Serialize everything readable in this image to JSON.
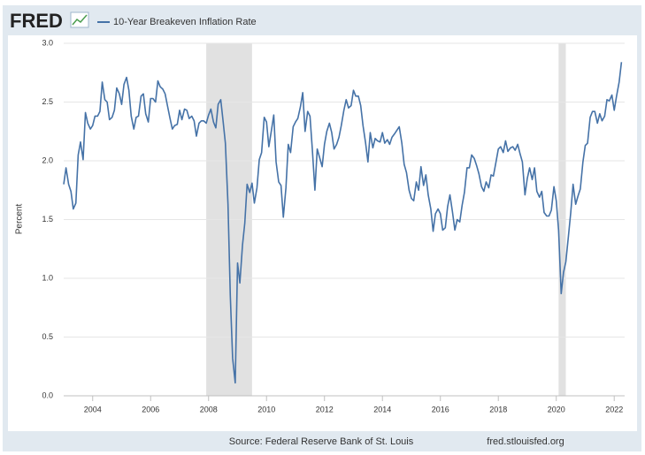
{
  "logo": "FRED",
  "source": "Source: Federal Reserve Bank of St. Louis",
  "site": "fred.stlouisfed.org",
  "chart_data": {
    "type": "line",
    "y_label": "Percent",
    "xlim": [
      2003.0,
      2022.36
    ],
    "xticks": [
      2004,
      2006,
      2008,
      2010,
      2012,
      2014,
      2016,
      2018,
      2020,
      2022
    ],
    "ylim": [
      0,
      3
    ],
    "yticks": [
      {
        "value": 0,
        "label": "0.0"
      },
      0.5,
      {
        "value": 1,
        "label": "1.0"
      },
      1.5,
      {
        "value": 2,
        "label": "2.0"
      },
      2.5,
      {
        "value": 3,
        "label": "3.0"
      }
    ],
    "grid": true,
    "shaded_periods": [
      [
        2007.92,
        2009.5
      ],
      [
        2020.08,
        2020.33
      ]
    ],
    "series": [
      {
        "name": "10-Year Breakeven Inflation Rate",
        "color": "#4572a7",
        "x": [
          2003.0,
          2003.08,
          2003.17,
          2003.25,
          2003.33,
          2003.42,
          2003.5,
          2003.58,
          2003.67,
          2003.75,
          2003.83,
          2003.92,
          2004.0,
          2004.08,
          2004.17,
          2004.25,
          2004.33,
          2004.42,
          2004.5,
          2004.58,
          2004.67,
          2004.75,
          2004.83,
          2004.92,
          2005.0,
          2005.08,
          2005.17,
          2005.25,
          2005.33,
          2005.42,
          2005.5,
          2005.58,
          2005.67,
          2005.75,
          2005.83,
          2005.92,
          2006.0,
          2006.08,
          2006.17,
          2006.25,
          2006.33,
          2006.42,
          2006.5,
          2006.58,
          2006.67,
          2006.75,
          2006.83,
          2006.92,
          2007.0,
          2007.08,
          2007.17,
          2007.25,
          2007.33,
          2007.42,
          2007.5,
          2007.58,
          2007.67,
          2007.75,
          2007.83,
          2007.92,
          2008.0,
          2008.08,
          2008.17,
          2008.25,
          2008.33,
          2008.42,
          2008.5,
          2008.58,
          2008.67,
          2008.75,
          2008.83,
          2008.92,
          2009.0,
          2009.08,
          2009.17,
          2009.25,
          2009.33,
          2009.42,
          2009.5,
          2009.58,
          2009.67,
          2009.75,
          2009.83,
          2009.92,
          2010.0,
          2010.08,
          2010.17,
          2010.25,
          2010.33,
          2010.42,
          2010.5,
          2010.58,
          2010.67,
          2010.75,
          2010.83,
          2010.92,
          2011.0,
          2011.08,
          2011.17,
          2011.25,
          2011.33,
          2011.42,
          2011.5,
          2011.58,
          2011.67,
          2011.75,
          2011.83,
          2011.92,
          2012.0,
          2012.08,
          2012.17,
          2012.25,
          2012.33,
          2012.42,
          2012.5,
          2012.58,
          2012.67,
          2012.75,
          2012.83,
          2012.92,
          2013.0,
          2013.08,
          2013.17,
          2013.25,
          2013.33,
          2013.42,
          2013.5,
          2013.58,
          2013.67,
          2013.75,
          2013.83,
          2013.92,
          2014.0,
          2014.08,
          2014.17,
          2014.25,
          2014.33,
          2014.42,
          2014.5,
          2014.58,
          2014.67,
          2014.75,
          2014.83,
          2014.92,
          2015.0,
          2015.08,
          2015.17,
          2015.25,
          2015.33,
          2015.42,
          2015.5,
          2015.58,
          2015.67,
          2015.75,
          2015.83,
          2015.92,
          2016.0,
          2016.08,
          2016.17,
          2016.25,
          2016.33,
          2016.42,
          2016.5,
          2016.58,
          2016.67,
          2016.75,
          2016.83,
          2016.92,
          2017.0,
          2017.08,
          2017.17,
          2017.25,
          2017.33,
          2017.42,
          2017.5,
          2017.58,
          2017.67,
          2017.75,
          2017.83,
          2017.92,
          2018.0,
          2018.08,
          2018.17,
          2018.25,
          2018.33,
          2018.42,
          2018.5,
          2018.58,
          2018.67,
          2018.75,
          2018.83,
          2018.92,
          2019.0,
          2019.08,
          2019.17,
          2019.25,
          2019.33,
          2019.42,
          2019.5,
          2019.58,
          2019.67,
          2019.75,
          2019.83,
          2019.92,
          2020.0,
          2020.08,
          2020.17,
          2020.25,
          2020.33,
          2020.42,
          2020.5,
          2020.58,
          2020.67,
          2020.75,
          2020.83,
          2020.92,
          2021.0,
          2021.08,
          2021.17,
          2021.25,
          2021.33,
          2021.42,
          2021.5,
          2021.58,
          2021.67,
          2021.75,
          2021.83,
          2021.92,
          2022.0,
          2022.08,
          2022.17,
          2022.25
        ],
        "values": [
          1.8,
          1.94,
          1.8,
          1.74,
          1.59,
          1.64,
          2.05,
          2.16,
          2.01,
          2.41,
          2.32,
          2.27,
          2.3,
          2.38,
          2.38,
          2.42,
          2.67,
          2.52,
          2.5,
          2.35,
          2.37,
          2.43,
          2.62,
          2.57,
          2.48,
          2.65,
          2.71,
          2.6,
          2.38,
          2.27,
          2.37,
          2.38,
          2.55,
          2.57,
          2.4,
          2.33,
          2.53,
          2.53,
          2.5,
          2.68,
          2.63,
          2.61,
          2.57,
          2.47,
          2.36,
          2.27,
          2.3,
          2.31,
          2.43,
          2.35,
          2.44,
          2.43,
          2.36,
          2.38,
          2.34,
          2.21,
          2.32,
          2.34,
          2.34,
          2.32,
          2.39,
          2.44,
          2.33,
          2.28,
          2.48,
          2.52,
          2.34,
          2.15,
          1.63,
          0.85,
          0.32,
          0.11,
          1.13,
          0.96,
          1.28,
          1.47,
          1.8,
          1.73,
          1.81,
          1.64,
          1.77,
          2.01,
          2.07,
          2.37,
          2.33,
          2.12,
          2.26,
          2.39,
          1.99,
          1.82,
          1.79,
          1.52,
          1.77,
          2.14,
          2.07,
          2.29,
          2.33,
          2.36,
          2.46,
          2.58,
          2.25,
          2.42,
          2.38,
          2.1,
          1.75,
          2.1,
          2.03,
          1.95,
          2.14,
          2.25,
          2.32,
          2.24,
          2.1,
          2.14,
          2.2,
          2.3,
          2.43,
          2.52,
          2.45,
          2.47,
          2.6,
          2.55,
          2.55,
          2.47,
          2.3,
          2.15,
          1.99,
          2.24,
          2.11,
          2.19,
          2.17,
          2.16,
          2.24,
          2.15,
          2.18,
          2.14,
          2.2,
          2.23,
          2.26,
          2.29,
          2.15,
          1.97,
          1.9,
          1.75,
          1.68,
          1.66,
          1.82,
          1.75,
          1.95,
          1.79,
          1.88,
          1.71,
          1.59,
          1.4,
          1.55,
          1.59,
          1.55,
          1.41,
          1.43,
          1.61,
          1.71,
          1.56,
          1.41,
          1.5,
          1.48,
          1.62,
          1.73,
          1.94,
          1.94,
          2.05,
          2.02,
          1.96,
          1.89,
          1.78,
          1.74,
          1.82,
          1.77,
          1.88,
          1.87,
          1.99,
          2.1,
          2.12,
          2.07,
          2.17,
          2.08,
          2.11,
          2.12,
          2.09,
          2.14,
          2.06,
          1.99,
          1.71,
          1.85,
          1.94,
          1.84,
          1.94,
          1.74,
          1.69,
          1.74,
          1.56,
          1.53,
          1.53,
          1.58,
          1.78,
          1.66,
          1.41,
          0.87,
          1.05,
          1.14,
          1.36,
          1.56,
          1.8,
          1.63,
          1.7,
          1.76,
          1.99,
          2.13,
          2.15,
          2.37,
          2.42,
          2.42,
          2.32,
          2.4,
          2.34,
          2.38,
          2.52,
          2.51,
          2.56,
          2.43,
          2.55,
          2.67,
          2.84
        ]
      }
    ]
  }
}
